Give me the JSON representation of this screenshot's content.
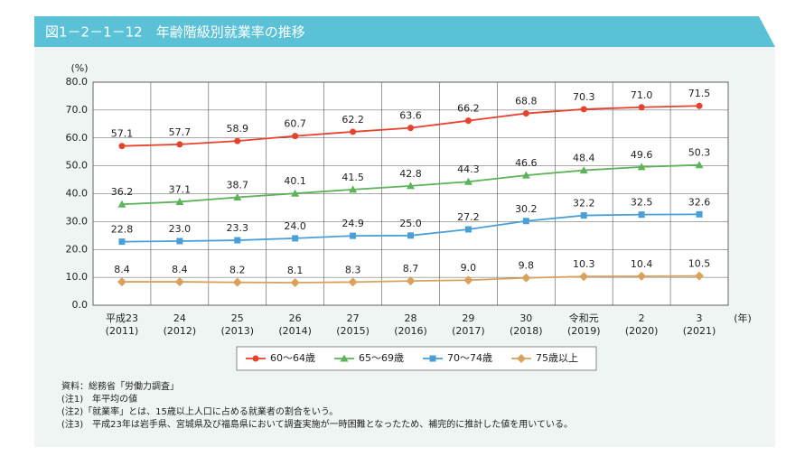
{
  "chart_data": {
    "type": "line",
    "title": "図1－2－1－12　年齢階級別就業率の推移",
    "y_unit": "(%)",
    "x_unit": "(年)",
    "categories": [
      [
        "平成23",
        "(2011)"
      ],
      [
        "24",
        "(2012)"
      ],
      [
        "25",
        "(2013)"
      ],
      [
        "26",
        "(2014)"
      ],
      [
        "27",
        "(2015)"
      ],
      [
        "28",
        "(2016)"
      ],
      [
        "29",
        "(2017)"
      ],
      [
        "30",
        "(2018)"
      ],
      [
        "令和元",
        "(2019)"
      ],
      [
        "2",
        "(2020)"
      ],
      [
        "3",
        "(2021)"
      ]
    ],
    "ylim": [
      0,
      80
    ],
    "yticks": [
      {
        "value": 0,
        "label": "0.0"
      },
      {
        "value": 10,
        "label": "10.0"
      },
      {
        "value": 20,
        "label": "20.0"
      },
      {
        "value": 30,
        "label": "30.0"
      },
      {
        "value": 40,
        "label": "40.0"
      },
      {
        "value": 50,
        "label": "50.0"
      },
      {
        "value": 60,
        "label": "60.0"
      },
      {
        "value": 70,
        "label": "70.0"
      },
      {
        "value": 80,
        "label": "80.0"
      }
    ],
    "grid": true,
    "series": [
      {
        "name": "60～64歳",
        "color": "#e5432d",
        "marker": "circle",
        "values": [
          57.1,
          57.7,
          58.9,
          60.7,
          62.2,
          63.6,
          66.2,
          68.8,
          70.3,
          71.0,
          71.5
        ],
        "value_labels": [
          "57.1",
          "57.7",
          "58.9",
          "60.7",
          "62.2",
          "63.6",
          "66.2",
          "68.8",
          "70.3",
          "71.0",
          "71.5"
        ]
      },
      {
        "name": "65～69歳",
        "color": "#5cb35a",
        "marker": "triangle",
        "values": [
          36.2,
          37.1,
          38.7,
          40.1,
          41.5,
          42.8,
          44.3,
          46.6,
          48.4,
          49.6,
          50.3
        ],
        "value_labels": [
          "36.2",
          "37.1",
          "38.7",
          "40.1",
          "41.5",
          "42.8",
          "44.3",
          "46.6",
          "48.4",
          "49.6",
          "50.3"
        ]
      },
      {
        "name": "70～74歳",
        "color": "#4a9fd8",
        "marker": "square",
        "values": [
          22.8,
          23.0,
          23.3,
          24.0,
          24.9,
          25.0,
          27.2,
          30.2,
          32.2,
          32.5,
          32.6
        ],
        "value_labels": [
          "22.8",
          "23.0",
          "23.3",
          "24.0",
          "24.9",
          "25.0",
          "27.2",
          "30.2",
          "32.2",
          "32.5",
          "32.6"
        ]
      },
      {
        "name": "75歳以上",
        "color": "#d9a25c",
        "marker": "diamond",
        "values": [
          8.4,
          8.4,
          8.2,
          8.1,
          8.3,
          8.7,
          9.0,
          9.8,
          10.3,
          10.4,
          10.5
        ],
        "value_labels": [
          "8.4",
          "8.4",
          "8.2",
          "8.1",
          "8.3",
          "8.7",
          "9.0",
          "9.8",
          "10.3",
          "10.4",
          "10.5"
        ]
      }
    ],
    "notes": [
      "資料：総務省「労働力調査」",
      "(注1)　年平均の値",
      "(注2)「就業率」とは、15歳以上人口に占める就業者の割合をいう。",
      "(注3)　平成23年は岩手県、宮城県及び福島県において調査実施が一時困難となったため、補完的に推計した値を用いている。"
    ]
  }
}
